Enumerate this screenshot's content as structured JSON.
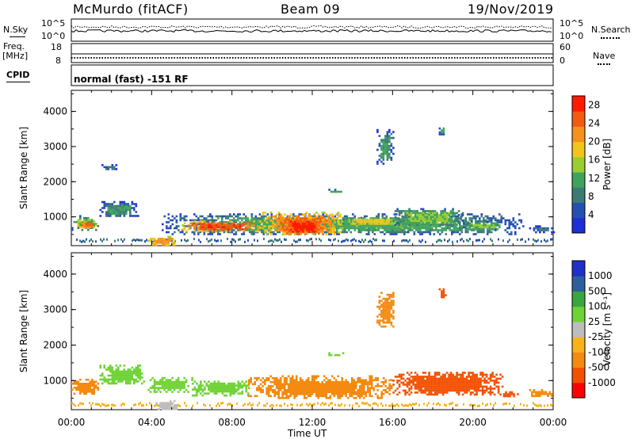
{
  "header": {
    "station": "McMurdo (fitACF)",
    "beam": "Beam 09",
    "date": "19/Nov/2019"
  },
  "strip": {
    "nsky_label": "N.Sky",
    "nsearch_label": "N.Search",
    "noise_ticks": [
      "10^5",
      "10^0"
    ],
    "freq_label": "Freq.",
    "freq_unit": "[MHz]",
    "freq_ticks": [
      "18",
      "8"
    ],
    "nave_label": "Nave",
    "nave_ticks": [
      "60",
      "0"
    ],
    "cpid_label": "CPID",
    "cpid_text": "normal (fast) -151 RF"
  },
  "icons": {
    "nsky_line": "solid-line-legend-icon",
    "nsearch_line": "dotted-line-legend-icon",
    "nave_line": "dotted-line-legend-icon"
  },
  "colors": {
    "power": [
      "#1d2fd6",
      "#2450b4",
      "#3d7a74",
      "#3fa35f",
      "#9acd2f",
      "#f2c51b",
      "#f6911c",
      "#f35c10",
      "#ff1a00"
    ],
    "velocity": [
      "#ff0000",
      "#f35000",
      "#f48a10",
      "#f9b21a",
      "#bdbdbd",
      "#6fd335",
      "#3aa640",
      "#2d5fa0",
      "#1f2fc8"
    ]
  },
  "chart_data": [
    {
      "type": "heatmap",
      "quantity": "power",
      "ylabel": "Slant Range [km]",
      "xlabel": "Time UT",
      "xticks": [
        "00:00",
        "04:00",
        "08:00",
        "12:00",
        "16:00",
        "20:00",
        "00:00"
      ],
      "yticks": [
        "1000",
        "2000",
        "3000",
        "4000"
      ],
      "ylim": [
        180,
        4600
      ],
      "xlim_hours": [
        0,
        24
      ],
      "colorbar_label": "Power [dB]",
      "colorbar_ticks": [
        "4",
        "8",
        "12",
        "16",
        "20",
        "24",
        "28"
      ],
      "colorbar_range": [
        0,
        30
      ],
      "blobs": [
        {
          "t0": 0.0,
          "t1": 1.3,
          "r0": 640,
          "r1": 1050,
          "value": 14
        },
        {
          "t0": 0.3,
          "t1": 1.2,
          "r0": 700,
          "r1": 900,
          "value": 24
        },
        {
          "t0": 1.4,
          "t1": 3.3,
          "r0": 1000,
          "r1": 1450,
          "value": 10
        },
        {
          "t0": 3.8,
          "t1": 5.2,
          "r0": 180,
          "r1": 460,
          "value": 22
        },
        {
          "t0": 4.5,
          "t1": 22.5,
          "r0": 520,
          "r1": 1100,
          "value": 12
        },
        {
          "t0": 5.5,
          "t1": 9.5,
          "r0": 600,
          "r1": 900,
          "value": 26
        },
        {
          "t0": 9.5,
          "t1": 13.5,
          "r0": 500,
          "r1": 1150,
          "value": 24
        },
        {
          "t0": 10.5,
          "t1": 12.5,
          "r0": 500,
          "r1": 1000,
          "value": 28
        },
        {
          "t0": 13.5,
          "t1": 16.5,
          "r0": 780,
          "r1": 1000,
          "value": 18
        },
        {
          "t0": 16.0,
          "t1": 19.5,
          "r0": 750,
          "r1": 1250,
          "value": 14
        },
        {
          "t0": 19.5,
          "t1": 21.5,
          "r0": 620,
          "r1": 900,
          "value": 14
        },
        {
          "t0": 22.8,
          "t1": 24.0,
          "r0": 580,
          "r1": 760,
          "value": 8
        },
        {
          "t0": 1.5,
          "t1": 2.3,
          "r0": 2350,
          "r1": 2500,
          "value": 8
        },
        {
          "t0": 12.8,
          "t1": 13.5,
          "r0": 1700,
          "r1": 1800,
          "value": 12
        },
        {
          "t0": 15.2,
          "t1": 16.0,
          "r0": 2500,
          "r1": 3500,
          "value": 10
        },
        {
          "t0": 18.3,
          "t1": 18.6,
          "r0": 3350,
          "r1": 3600,
          "value": 12
        }
      ]
    },
    {
      "type": "heatmap",
      "quantity": "velocity",
      "ylabel": "Slant Range [km]",
      "xlabel": "Time UT",
      "xticks": [
        "00:00",
        "04:00",
        "08:00",
        "12:00",
        "16:00",
        "20:00",
        "00:00"
      ],
      "yticks": [
        "1000",
        "2000",
        "3000",
        "4000"
      ],
      "ylim": [
        180,
        4600
      ],
      "xlim_hours": [
        0,
        24
      ],
      "colorbar_label": "Velocity [m s⁻¹]",
      "colorbar_ticks": [
        "1000",
        "500",
        "100",
        "25",
        "-25",
        "-100",
        "-500",
        "-1000"
      ],
      "blobs": [
        {
          "t0": 0.0,
          "t1": 1.3,
          "r0": 640,
          "r1": 1050,
          "value": -100
        },
        {
          "t0": 1.4,
          "t1": 3.6,
          "r0": 900,
          "r1": 1450,
          "value": 100
        },
        {
          "t0": 4.2,
          "t1": 5.2,
          "r0": 180,
          "r1": 450,
          "value": 0
        },
        {
          "t0": 3.8,
          "t1": 6.0,
          "r0": 700,
          "r1": 1100,
          "value": 100
        },
        {
          "t0": 6.0,
          "t1": 8.8,
          "r0": 600,
          "r1": 1000,
          "value": 100
        },
        {
          "t0": 8.8,
          "t1": 16.0,
          "r0": 500,
          "r1": 1150,
          "value": -100
        },
        {
          "t0": 16.0,
          "t1": 21.5,
          "r0": 600,
          "r1": 1250,
          "value": -500
        },
        {
          "t0": 21.5,
          "t1": 22.2,
          "r0": 550,
          "r1": 700,
          "value": -500
        },
        {
          "t0": 22.8,
          "t1": 24.0,
          "r0": 580,
          "r1": 760,
          "value": -100
        },
        {
          "t0": 12.8,
          "t1": 13.5,
          "r0": 1700,
          "r1": 1800,
          "value": 100
        },
        {
          "t0": 15.2,
          "t1": 16.0,
          "r0": 2500,
          "r1": 3500,
          "value": -100
        },
        {
          "t0": 18.3,
          "t1": 18.6,
          "r0": 3350,
          "r1": 3600,
          "value": -500
        }
      ]
    }
  ]
}
